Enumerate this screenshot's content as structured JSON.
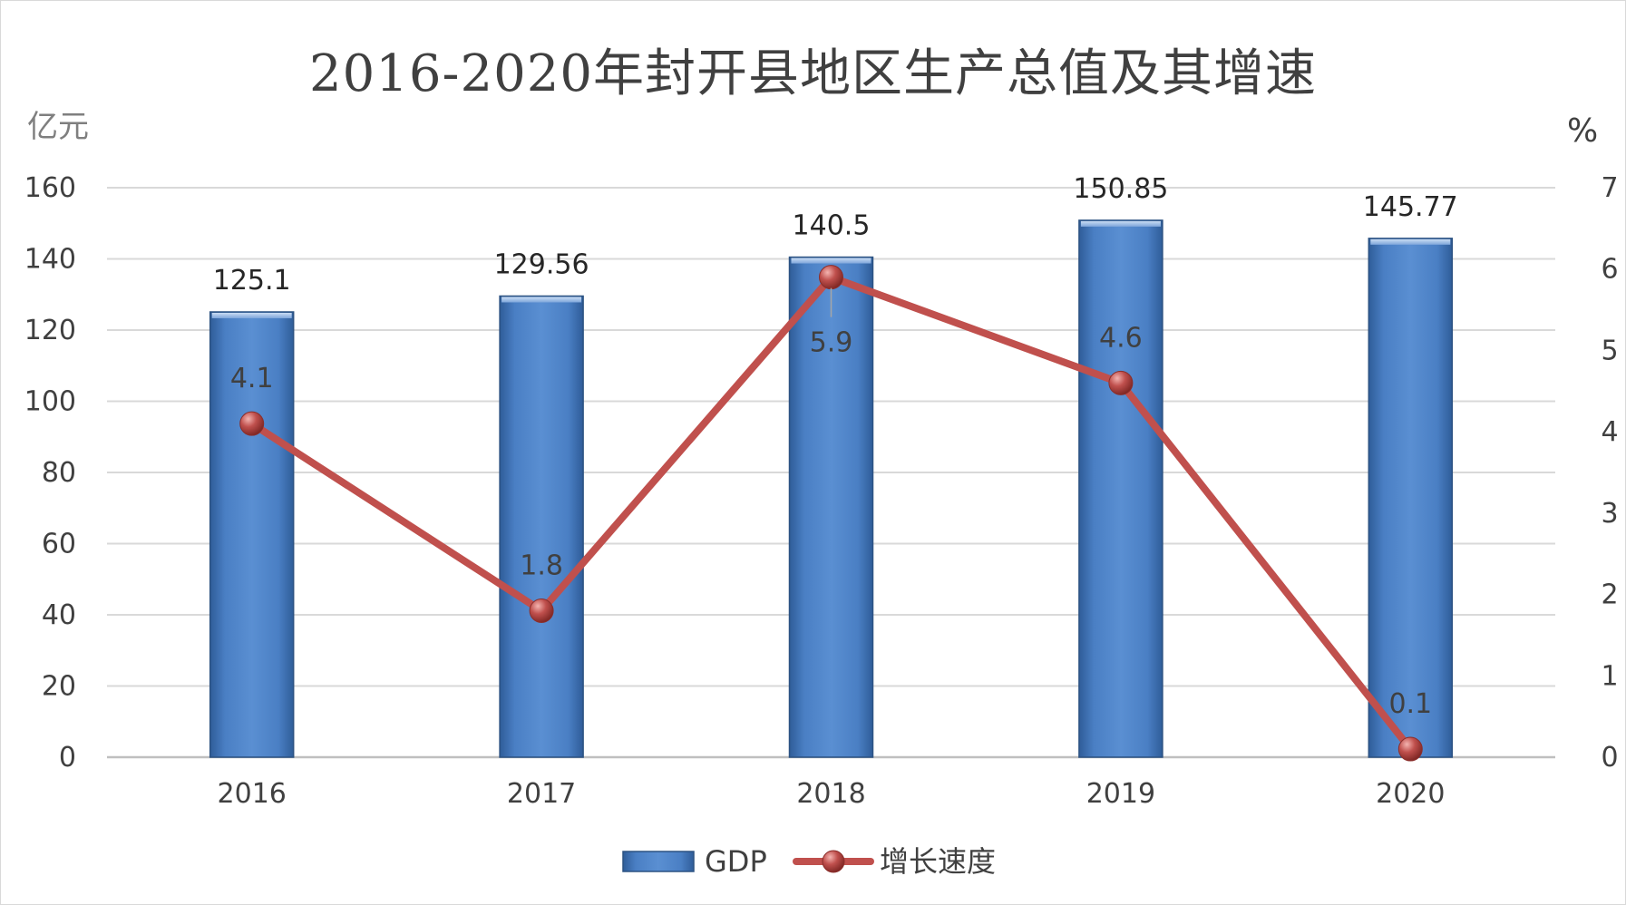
{
  "chart_data": {
    "type": "bar",
    "title": "2016-2020年封开县地区生产总值及其增速",
    "categories": [
      "2016",
      "2017",
      "2018",
      "2019",
      "2020"
    ],
    "series": [
      {
        "name": "GDP",
        "type": "bar",
        "axis": "left",
        "values": [
          125.1,
          129.56,
          140.5,
          150.85,
          145.77
        ],
        "labels": [
          "125.1",
          "129.56",
          "140.5",
          "150.85",
          "145.77"
        ],
        "color": "#4f81bd"
      },
      {
        "name": "增长速度",
        "type": "line",
        "axis": "right",
        "values": [
          4.1,
          1.8,
          5.9,
          4.6,
          0.1
        ],
        "labels": [
          "4.1",
          "1.8",
          "5.9",
          "4.6",
          "0.1"
        ],
        "color": "#c0504d"
      }
    ],
    "y_left": {
      "unit": "亿元",
      "ylim": [
        0,
        160
      ],
      "ticks": [
        "0",
        "20",
        "40",
        "60",
        "80",
        "100",
        "120",
        "140",
        "160"
      ]
    },
    "y_right": {
      "unit": "%",
      "ylim": [
        0,
        7
      ],
      "ticks": [
        "0",
        "1",
        "2",
        "3",
        "4",
        "5",
        "6",
        "7"
      ]
    },
    "grid": true,
    "legend": "bottom"
  }
}
